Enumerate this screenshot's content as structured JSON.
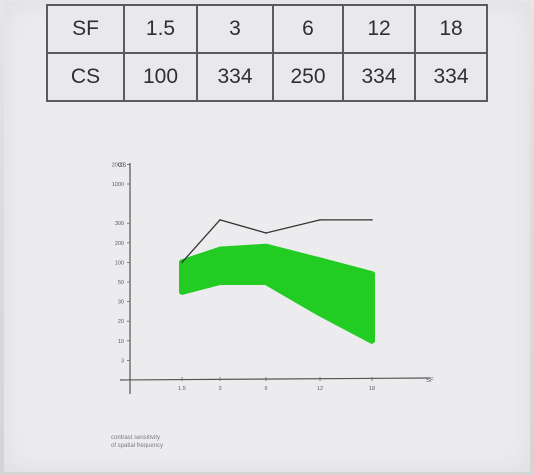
{
  "table": {
    "rows": [
      [
        "SF",
        "1.5",
        "3",
        "6",
        "12",
        "18"
      ],
      [
        "CS",
        "100",
        "334",
        "250",
        "334",
        "334"
      ]
    ]
  },
  "chart_data": {
    "type": "line",
    "title": "",
    "xlabel": "",
    "ylabel": "",
    "x_ticks": [
      "1.5",
      "3",
      "6",
      "12",
      "18"
    ],
    "x_tick_labels": [
      "1.5",
      "3",
      "6",
      "12",
      "18"
    ],
    "y_ticks": [
      "0",
      "3",
      "10",
      "20",
      "30",
      "50",
      "100",
      "200",
      "300",
      "500",
      "1000",
      "2000"
    ],
    "y_tick_labels": [
      "3",
      "10",
      "20",
      "30",
      "50",
      "100",
      "200",
      "300",
      "1000",
      "2000"
    ],
    "y_top_label": "CS",
    "x_end_label": "SF",
    "series": [
      {
        "x": [
          1.5,
          3,
          6,
          12,
          18
        ],
        "y": [
          100,
          334,
          250,
          334,
          334
        ]
      }
    ],
    "normal_band": {
      "x": [
        1.5,
        3,
        6,
        12,
        18
      ],
      "upper": [
        100,
        165,
        180,
        110,
        70
      ],
      "lower": [
        40,
        50,
        50,
        24,
        10
      ]
    },
    "colors": {
      "band": "#22cc22",
      "line": "#333333"
    },
    "caption": [
      "contrast sensitivity",
      "of spatial frequency"
    ]
  }
}
